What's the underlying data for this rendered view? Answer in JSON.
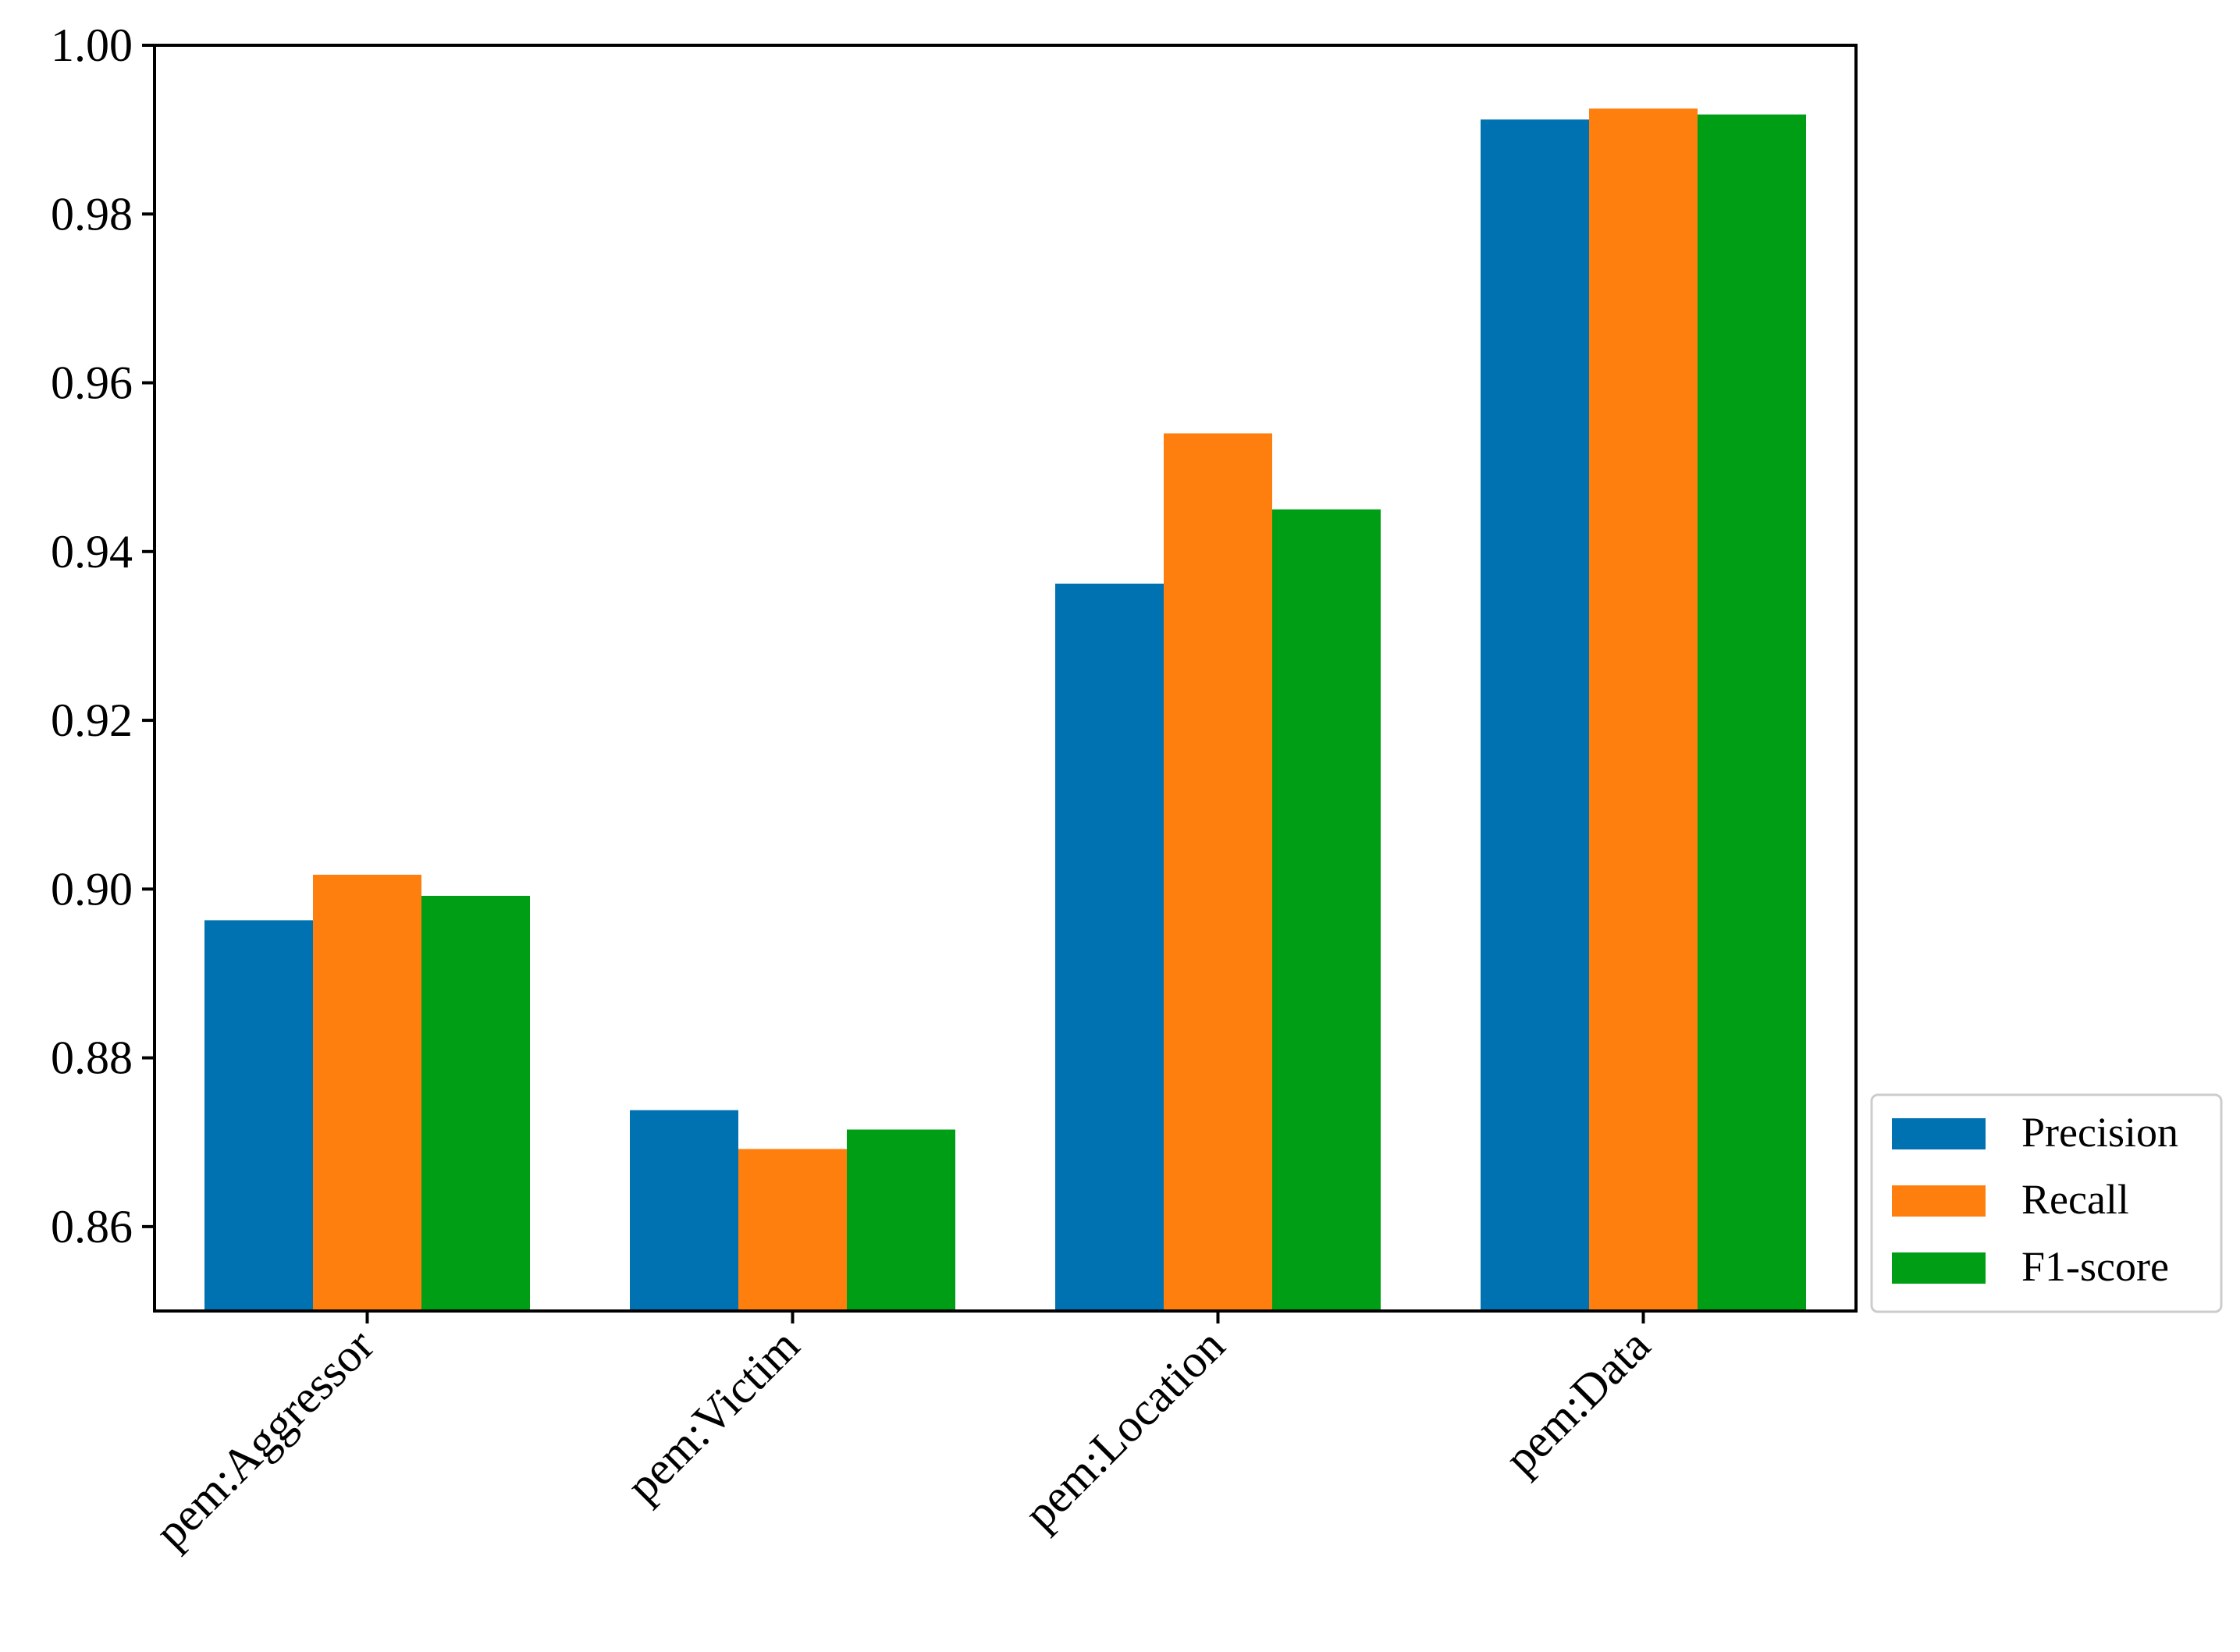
{
  "chart_data": {
    "type": "bar",
    "title": "",
    "xlabel": "",
    "ylabel": "",
    "categories": [
      "pem:Aggressor",
      "pem:Victim",
      "pem:Location",
      "pem:Data"
    ],
    "series": [
      {
        "name": "Precision",
        "values": [
          0.8963,
          0.8738,
          0.9362,
          0.9912
        ],
        "color": "#0072b2"
      },
      {
        "name": "Recall",
        "values": [
          0.9017,
          0.8692,
          0.954,
          0.9925
        ],
        "color": "#ff7f0e"
      },
      {
        "name": "F1-score",
        "values": [
          0.8992,
          0.8715,
          0.945,
          0.9918
        ],
        "color": "#009e14"
      }
    ],
    "ylim": [
      0.85,
      1.0
    ],
    "yticks": [
      0.86,
      0.88,
      0.9,
      0.92,
      0.94,
      0.96,
      0.98,
      1.0
    ],
    "ytick_labels": [
      "0.86",
      "0.88",
      "0.90",
      "0.92",
      "0.94",
      "0.96",
      "0.98",
      "1.00"
    ],
    "grid": false,
    "legend_position": "outside-right-bottom"
  }
}
